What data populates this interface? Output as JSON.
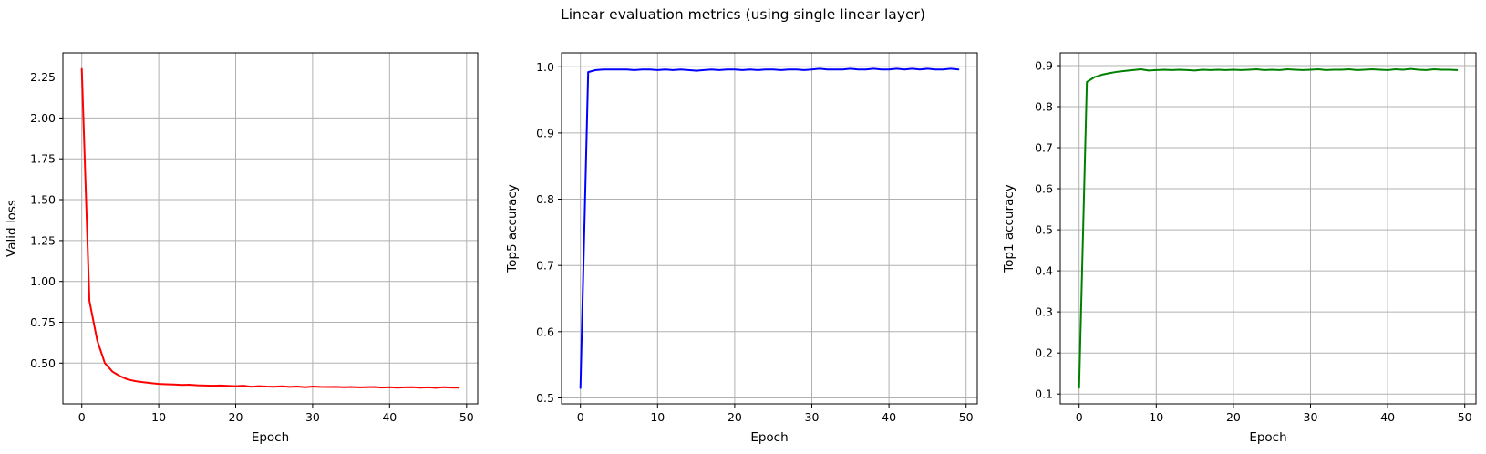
{
  "figure": {
    "title": "Linear evaluation metrics (using single linear layer)",
    "background": "#ffffff",
    "grid_color": "#b0b0b0",
    "spine_color": "#000000",
    "text_color": "#000000"
  },
  "chart_data": [
    {
      "type": "line",
      "name": "valid-loss",
      "title": "",
      "xlabel": "Epoch",
      "ylabel": "Valid loss",
      "line_color": "#ff0000",
      "grid": true,
      "xlim": [
        -2.45,
        51.45
      ],
      "ylim": [
        0.251,
        2.398
      ],
      "xticks": [
        0,
        10,
        20,
        30,
        40,
        50
      ],
      "xtick_labels": [
        "0",
        "10",
        "20",
        "30",
        "40",
        "50"
      ],
      "yticks": [
        0.5,
        0.75,
        1.0,
        1.25,
        1.5,
        1.75,
        2.0,
        2.25
      ],
      "ytick_labels": [
        "0.50",
        "0.75",
        "1.00",
        "1.25",
        "1.50",
        "1.75",
        "2.00",
        "2.25"
      ],
      "x": [
        0,
        1,
        2,
        3,
        4,
        5,
        6,
        7,
        8,
        9,
        10,
        11,
        12,
        13,
        14,
        15,
        16,
        17,
        18,
        19,
        20,
        21,
        22,
        23,
        24,
        25,
        26,
        27,
        28,
        29,
        30,
        31,
        32,
        33,
        34,
        35,
        36,
        37,
        38,
        39,
        40,
        41,
        42,
        43,
        44,
        45,
        46,
        47,
        48,
        49
      ],
      "values": [
        2.3,
        0.88,
        0.64,
        0.5,
        0.448,
        0.42,
        0.4,
        0.39,
        0.383,
        0.378,
        0.373,
        0.371,
        0.369,
        0.367,
        0.368,
        0.365,
        0.363,
        0.362,
        0.363,
        0.361,
        0.359,
        0.362,
        0.356,
        0.359,
        0.357,
        0.356,
        0.358,
        0.355,
        0.357,
        0.353,
        0.357,
        0.355,
        0.354,
        0.355,
        0.353,
        0.354,
        0.352,
        0.353,
        0.354,
        0.351,
        0.353,
        0.35,
        0.352,
        0.353,
        0.35,
        0.352,
        0.349,
        0.353,
        0.351,
        0.35
      ]
    },
    {
      "type": "line",
      "name": "top5-accuracy",
      "title": "",
      "xlabel": "Epoch",
      "ylabel": "Top5 accuracy",
      "line_color": "#0000ff",
      "grid": true,
      "xlim": [
        -2.45,
        51.45
      ],
      "ylim": [
        0.491,
        1.021
      ],
      "xticks": [
        0,
        10,
        20,
        30,
        40,
        50
      ],
      "xtick_labels": [
        "0",
        "10",
        "20",
        "30",
        "40",
        "50"
      ],
      "yticks": [
        0.5,
        0.6,
        0.7,
        0.8,
        0.9,
        1.0
      ],
      "ytick_labels": [
        "0.5",
        "0.6",
        "0.7",
        "0.8",
        "0.9",
        "1.0"
      ],
      "x": [
        0,
        1,
        2,
        3,
        4,
        5,
        6,
        7,
        8,
        9,
        10,
        11,
        12,
        13,
        14,
        15,
        16,
        17,
        18,
        19,
        20,
        21,
        22,
        23,
        24,
        25,
        26,
        27,
        28,
        29,
        30,
        31,
        32,
        33,
        34,
        35,
        36,
        37,
        38,
        39,
        40,
        41,
        42,
        43,
        44,
        45,
        46,
        47,
        48,
        49
      ],
      "values": [
        0.515,
        0.992,
        0.995,
        0.996,
        0.996,
        0.996,
        0.996,
        0.995,
        0.996,
        0.996,
        0.995,
        0.996,
        0.995,
        0.996,
        0.995,
        0.994,
        0.995,
        0.996,
        0.995,
        0.996,
        0.996,
        0.995,
        0.996,
        0.995,
        0.996,
        0.996,
        0.995,
        0.996,
        0.996,
        0.995,
        0.996,
        0.997,
        0.996,
        0.996,
        0.996,
        0.997,
        0.996,
        0.996,
        0.997,
        0.996,
        0.996,
        0.997,
        0.996,
        0.997,
        0.996,
        0.997,
        0.996,
        0.996,
        0.997,
        0.996
      ]
    },
    {
      "type": "line",
      "name": "top1-accuracy",
      "title": "",
      "xlabel": "Epoch",
      "ylabel": "Top1 accuracy",
      "line_color": "#008000",
      "grid": true,
      "xlim": [
        -2.45,
        51.45
      ],
      "ylim": [
        0.076,
        0.931
      ],
      "xticks": [
        0,
        10,
        20,
        30,
        40,
        50
      ],
      "xtick_labels": [
        "0",
        "10",
        "20",
        "30",
        "40",
        "50"
      ],
      "yticks": [
        0.1,
        0.2,
        0.3,
        0.4,
        0.5,
        0.6,
        0.7,
        0.8,
        0.9
      ],
      "ytick_labels": [
        "0.1",
        "0.2",
        "0.3",
        "0.4",
        "0.5",
        "0.6",
        "0.7",
        "0.8",
        "0.9"
      ],
      "x": [
        0,
        1,
        2,
        3,
        4,
        5,
        6,
        7,
        8,
        9,
        10,
        11,
        12,
        13,
        14,
        15,
        16,
        17,
        18,
        19,
        20,
        21,
        22,
        23,
        24,
        25,
        26,
        27,
        28,
        29,
        30,
        31,
        32,
        33,
        34,
        35,
        36,
        37,
        38,
        39,
        40,
        41,
        42,
        43,
        44,
        45,
        46,
        47,
        48,
        49
      ],
      "values": [
        0.115,
        0.86,
        0.872,
        0.878,
        0.882,
        0.885,
        0.887,
        0.889,
        0.891,
        0.888,
        0.889,
        0.89,
        0.889,
        0.89,
        0.889,
        0.888,
        0.89,
        0.889,
        0.89,
        0.889,
        0.89,
        0.889,
        0.89,
        0.891,
        0.889,
        0.89,
        0.889,
        0.891,
        0.89,
        0.889,
        0.89,
        0.891,
        0.889,
        0.89,
        0.89,
        0.891,
        0.889,
        0.89,
        0.891,
        0.89,
        0.889,
        0.891,
        0.89,
        0.892,
        0.89,
        0.889,
        0.891,
        0.89,
        0.89,
        0.889
      ]
    }
  ]
}
